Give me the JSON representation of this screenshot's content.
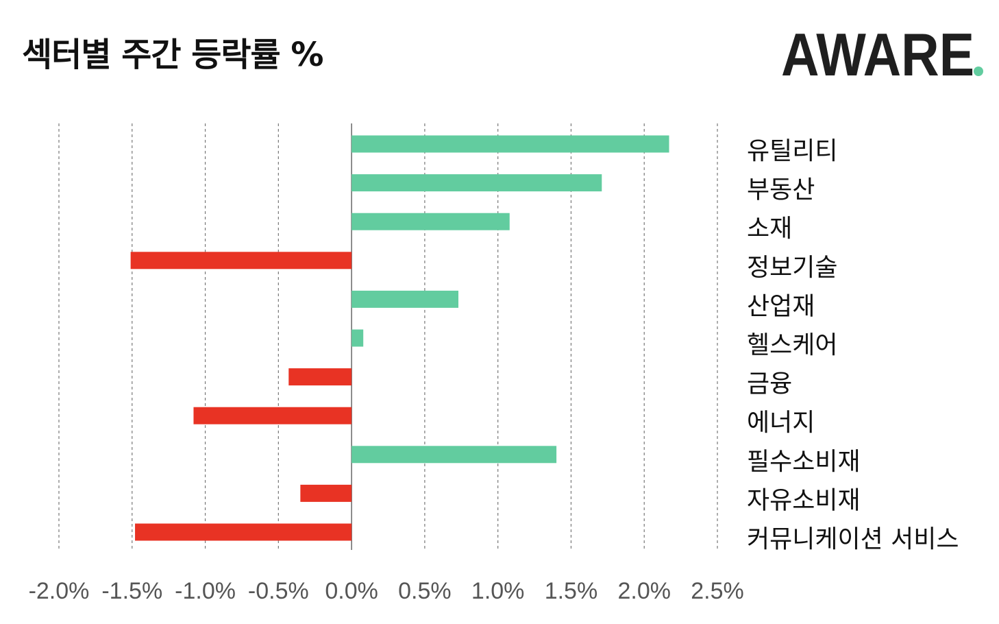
{
  "header": {
    "title": "섹터별 주간 등락률 %",
    "logo_text": "AWARE."
  },
  "colors": {
    "positive": "#62CC9F",
    "negative": "#E83324",
    "logo_dark": "#1f1f1f",
    "logo_accent": "#62CC9F"
  },
  "chart_data": {
    "type": "bar",
    "orientation": "horizontal",
    "title": "섹터별 주간 등락률 %",
    "categories": [
      "유틸리티",
      "부동산",
      "소재",
      "정보기술",
      "산업재",
      "헬스케어",
      "금융",
      "에너지",
      "필수소비재",
      "자유소비재",
      "커뮤니케이션 서비스"
    ],
    "values": [
      2.17,
      1.71,
      1.08,
      -1.51,
      0.73,
      0.08,
      -0.43,
      -1.08,
      1.4,
      -0.35,
      -1.48
    ],
    "xlim": [
      -2.0,
      2.5
    ],
    "xticks": [
      "-2.0%",
      "-1.5%",
      "-1.0%",
      "-0.5%",
      "0.0%",
      "0.5%",
      "1.0%",
      "1.5%",
      "2.0%",
      "2.5%"
    ],
    "grid": true,
    "category_labels_position": "right"
  }
}
